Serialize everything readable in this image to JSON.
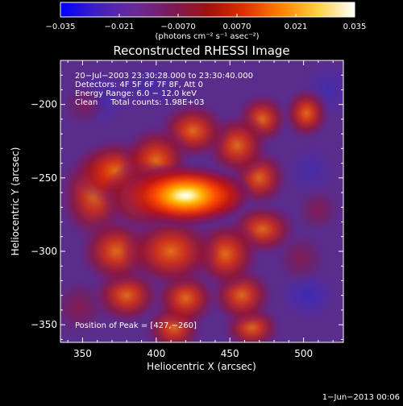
{
  "colorbar": {
    "min": -0.035,
    "max": 0.035,
    "tick_labels": [
      "−0.035",
      "−0.021",
      "−0.0070",
      "0.0070",
      "0.021",
      "0.035"
    ],
    "unit_label": "(photons cm⁻² s⁻¹ asec⁻²)",
    "colors": [
      "#0000ff",
      "#4020c0",
      "#6a2a9a",
      "#7a1a5a",
      "#a01010",
      "#e03000",
      "#ff8000",
      "#ffd040",
      "#ffffff"
    ]
  },
  "plot": {
    "title": "Reconstructed RHESSI Image",
    "xlabel": "Heliocentric X (arcsec)",
    "ylabel": "Heliocentric Y (arcsec)",
    "xlim": [
      335,
      527
    ],
    "ylim": [
      -362,
      -170
    ],
    "x_ticks": [
      350,
      400,
      450,
      500
    ],
    "x_tick_labels": [
      "350",
      "400",
      "450",
      "500"
    ],
    "y_ticks": [
      -200,
      -250,
      -300,
      -350
    ],
    "y_tick_labels": [
      "−200",
      "−250",
      "−300",
      "−350"
    ]
  },
  "annotations": {
    "time_range": "20−Jul−2003 23:30:28.000 to 23:30:40.000",
    "detectors": "Detectors: 4F 5F 6F 7F 8F, Att 0",
    "energy_range": "Energy Range: 6.0 − 12.0 keV",
    "clean_total": "Clean     Total counts: 1.98E+03",
    "peak_position": "Position of Peak = [427,−260]"
  },
  "footer": {
    "timestamp": "1−Jun−2013 00:06"
  },
  "image_data": {
    "background_color": "#5a2c8c",
    "peak": {
      "x": 427,
      "y": -260
    },
    "blobs": [
      {
        "x": 420,
        "y": -262,
        "sx": 22,
        "sy": 11,
        "a": 1.0
      },
      {
        "x": 445,
        "y": -262,
        "sx": 10,
        "sy": 8,
        "a": 0.65
      },
      {
        "x": 392,
        "y": -263,
        "sx": 14,
        "sy": 12,
        "a": 0.62
      },
      {
        "x": 372,
        "y": -245,
        "sx": 14,
        "sy": 11,
        "a": 0.55
      },
      {
        "x": 358,
        "y": -262,
        "sx": 12,
        "sy": 16,
        "a": 0.45
      },
      {
        "x": 400,
        "y": -238,
        "sx": 12,
        "sy": 12,
        "a": 0.55
      },
      {
        "x": 425,
        "y": -218,
        "sx": 12,
        "sy": 10,
        "a": 0.5
      },
      {
        "x": 455,
        "y": -228,
        "sx": 11,
        "sy": 11,
        "a": 0.48
      },
      {
        "x": 472,
        "y": -210,
        "sx": 9,
        "sy": 9,
        "a": 0.45
      },
      {
        "x": 502,
        "y": -206,
        "sx": 8,
        "sy": 9,
        "a": 0.5
      },
      {
        "x": 470,
        "y": -250,
        "sx": 10,
        "sy": 10,
        "a": 0.42
      },
      {
        "x": 472,
        "y": -285,
        "sx": 12,
        "sy": 9,
        "a": 0.45
      },
      {
        "x": 447,
        "y": -302,
        "sx": 12,
        "sy": 12,
        "a": 0.55
      },
      {
        "x": 410,
        "y": -300,
        "sx": 16,
        "sy": 13,
        "a": 0.55
      },
      {
        "x": 373,
        "y": -300,
        "sx": 13,
        "sy": 12,
        "a": 0.5
      },
      {
        "x": 380,
        "y": -330,
        "sx": 12,
        "sy": 10,
        "a": 0.48
      },
      {
        "x": 420,
        "y": -332,
        "sx": 11,
        "sy": 10,
        "a": 0.5
      },
      {
        "x": 458,
        "y": -330,
        "sx": 11,
        "sy": 10,
        "a": 0.45
      },
      {
        "x": 465,
        "y": -352,
        "sx": 10,
        "sy": 8,
        "a": 0.42
      },
      {
        "x": 412,
        "y": -352,
        "sx": 10,
        "sy": 9,
        "a": 0.45
      },
      {
        "x": 348,
        "y": -338,
        "sx": 10,
        "sy": 10,
        "a": 0.38
      },
      {
        "x": 510,
        "y": -272,
        "sx": 8,
        "sy": 8,
        "a": 0.28
      },
      {
        "x": 498,
        "y": -305,
        "sx": 9,
        "sy": 9,
        "a": 0.3
      },
      {
        "x": 352,
        "y": -200,
        "sx": 8,
        "sy": 8,
        "a": 0.22
      }
    ],
    "dark_spots": [
      {
        "x": 362,
        "y": -196,
        "sx": 10,
        "sy": 10,
        "a": 0.35
      },
      {
        "x": 503,
        "y": -330,
        "sx": 10,
        "sy": 9,
        "a": 0.4
      },
      {
        "x": 517,
        "y": -190,
        "sx": 9,
        "sy": 10,
        "a": 0.3
      },
      {
        "x": 505,
        "y": -245,
        "sx": 9,
        "sy": 9,
        "a": 0.28
      },
      {
        "x": 395,
        "y": -187,
        "sx": 14,
        "sy": 8,
        "a": 0.25
      }
    ]
  }
}
